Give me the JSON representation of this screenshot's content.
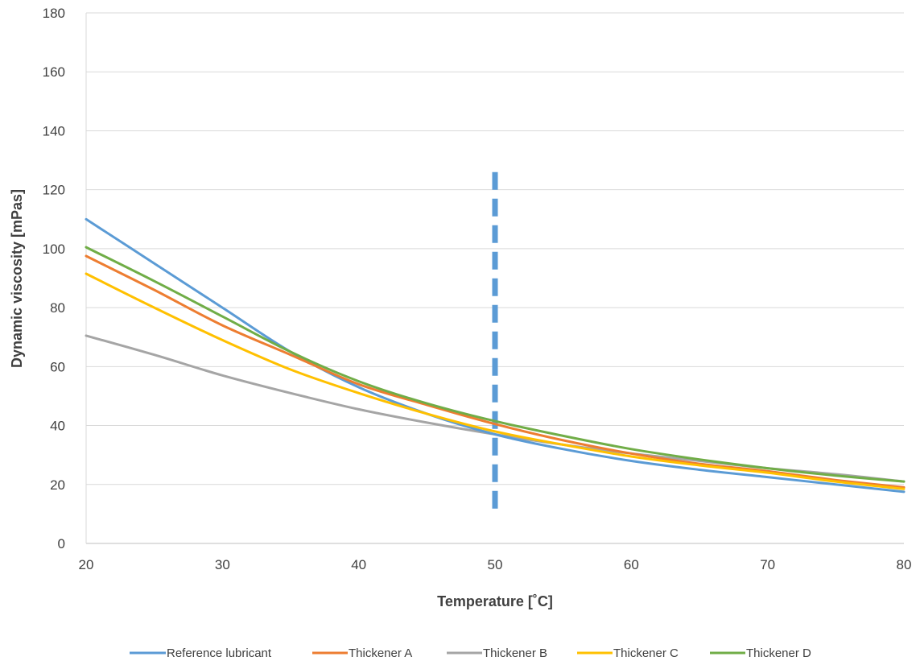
{
  "chart_data": {
    "type": "line",
    "title": "",
    "xlabel": "Temperature [˚C]",
    "ylabel": "Dynamic viscosity [mPas]",
    "xlim": [
      20,
      80
    ],
    "ylim": [
      0,
      180
    ],
    "x_ticks": [
      20,
      30,
      40,
      50,
      60,
      70,
      80
    ],
    "y_ticks": [
      0,
      20,
      40,
      60,
      80,
      100,
      120,
      140,
      160,
      180
    ],
    "grid": "horizontal",
    "legend_position": "bottom",
    "x": [
      20,
      25,
      30,
      35,
      40,
      45,
      50,
      55,
      60,
      65,
      70,
      75,
      80
    ],
    "series": [
      {
        "name": "Reference lubricant",
        "color": "#5B9BD5",
        "values": [
          110,
          95,
          80,
          65,
          53,
          44,
          37,
          32,
          28,
          25,
          22.5,
          20,
          17.5
        ]
      },
      {
        "name": "Thickener A",
        "color": "#ED7D31",
        "values": [
          97.5,
          86,
          74,
          64,
          54,
          47,
          40.5,
          35,
          30.5,
          27,
          24.5,
          21.5,
          19
        ]
      },
      {
        "name": "Thickener B",
        "color": "#A5A5A5",
        "values": [
          70.5,
          64,
          57,
          51,
          45.5,
          41,
          37,
          33.5,
          30.5,
          28,
          25.5,
          23.5,
          21
        ]
      },
      {
        "name": "Thickener C",
        "color": "#FFC000",
        "values": [
          91.5,
          80,
          69,
          59,
          51,
          44,
          38,
          33.5,
          29.5,
          26.5,
          24,
          21,
          18.5
        ]
      },
      {
        "name": "Thickener D",
        "color": "#70AD47",
        "values": [
          100.5,
          89,
          77,
          65,
          55,
          47.5,
          41.5,
          36.5,
          32,
          28.5,
          25.5,
          23,
          21
        ]
      }
    ],
    "reference_line": {
      "x": 50,
      "y_range": [
        10,
        126
      ],
      "color": "#5B9BD5",
      "style": "dashed"
    }
  }
}
